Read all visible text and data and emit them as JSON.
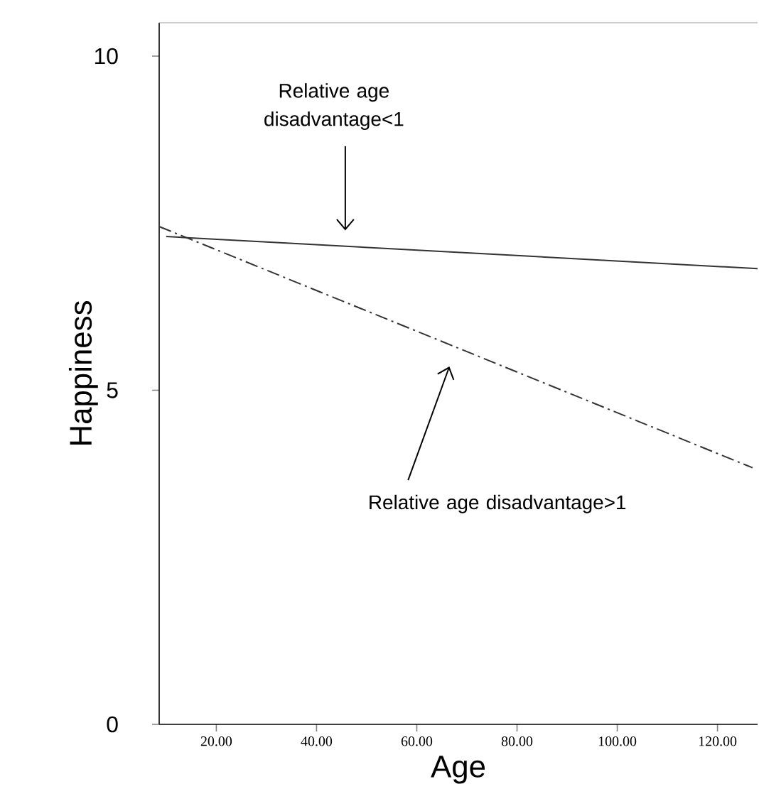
{
  "chart_data": {
    "type": "line",
    "xlabel": "Age",
    "ylabel": "Happiness",
    "xlim": [
      8.6,
      128
    ],
    "ylim": [
      0,
      10.5
    ],
    "xticks": [
      {
        "value": 20,
        "label": "20.00"
      },
      {
        "value": 40,
        "label": "40.00"
      },
      {
        "value": 60,
        "label": "60.00"
      },
      {
        "value": 80,
        "label": "80.00"
      },
      {
        "value": 100,
        "label": "100.00"
      },
      {
        "value": 120,
        "label": "120.00"
      }
    ],
    "yticks": [
      0,
      5,
      10
    ],
    "series": [
      {
        "color": "#333333",
        "line_style": "solid",
        "x": [
          10,
          128
        ],
        "values": [
          7.3,
          6.82
        ]
      },
      {
        "color": "#333333",
        "line_style": "dashdot",
        "x": [
          8.6,
          127
        ],
        "values": [
          7.45,
          3.84
        ]
      }
    ],
    "annotations": [
      "Relative age disadvantage<1",
      "Relative age disadvantage>1"
    ],
    "grid": false,
    "marker": "none"
  }
}
